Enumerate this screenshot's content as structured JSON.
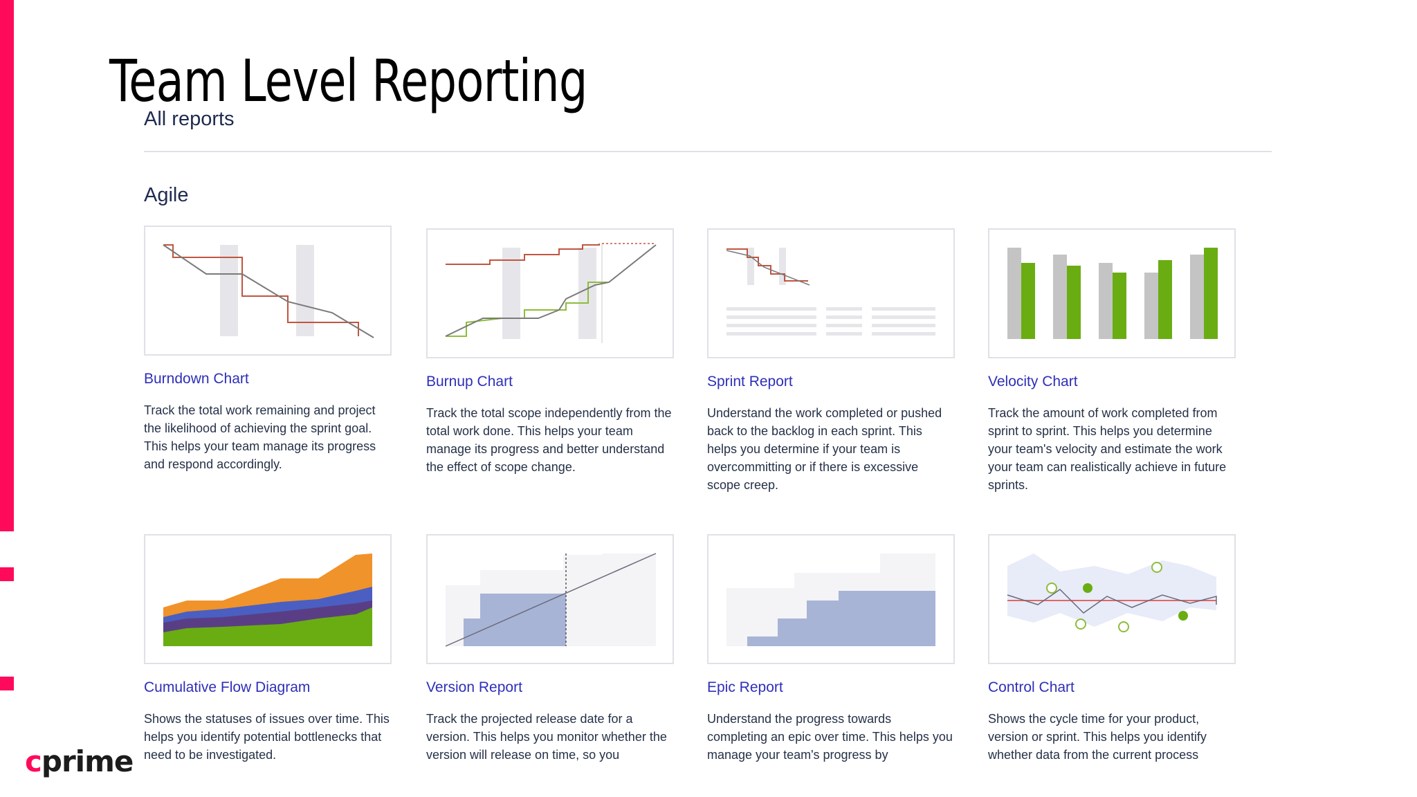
{
  "page": {
    "title": "Team Level Reporting"
  },
  "reports": {
    "heading": "All reports",
    "section": "Agile",
    "items": [
      {
        "title": "Burndown Chart",
        "description": "Track the total work remaining and project the likelihood of achieving the sprint goal. This helps your team manage its progress and respond accordingly."
      },
      {
        "title": "Burnup Chart",
        "description": "Track the total scope independently from the total work done. This helps your team manage its progress and better understand the effect of scope change."
      },
      {
        "title": "Sprint Report",
        "description": "Understand the work completed or pushed back to the backlog in each sprint. This helps you determine if your team is overcommitting or if there is excessive scope creep."
      },
      {
        "title": "Velocity Chart",
        "description": "Track the amount of work completed from sprint to sprint. This helps you determine your team's velocity and estimate the work your team can realistically achieve in future sprints."
      },
      {
        "title": "Cumulative Flow Diagram",
        "description": "Shows the statuses of issues over time. This helps you identify potential bottlenecks that need to be investigated."
      },
      {
        "title": "Version Report",
        "description": "Track the projected release date for a version. This helps you monitor whether the version will release on time, so you"
      },
      {
        "title": "Epic Report",
        "description": "Understand the progress towards completing an epic over time. This helps you manage your team's progress by"
      },
      {
        "title": "Control Chart",
        "description": "Shows the cycle time for your product, version or sprint. This helps you identify whether data from the current process"
      }
    ]
  },
  "brand": {
    "logo_c": "c",
    "logo_rest": "prime",
    "accent_color": "#ff0a5a",
    "link_color": "#2e2fb8"
  },
  "icons": {
    "burndown": "burndown-thumbnail",
    "burnup": "burnup-thumbnail",
    "sprint": "sprint-report-thumbnail",
    "velocity": "velocity-thumbnail",
    "cfd": "cumulative-flow-thumbnail",
    "version": "version-report-thumbnail",
    "epic": "epic-report-thumbnail",
    "control": "control-chart-thumbnail"
  }
}
